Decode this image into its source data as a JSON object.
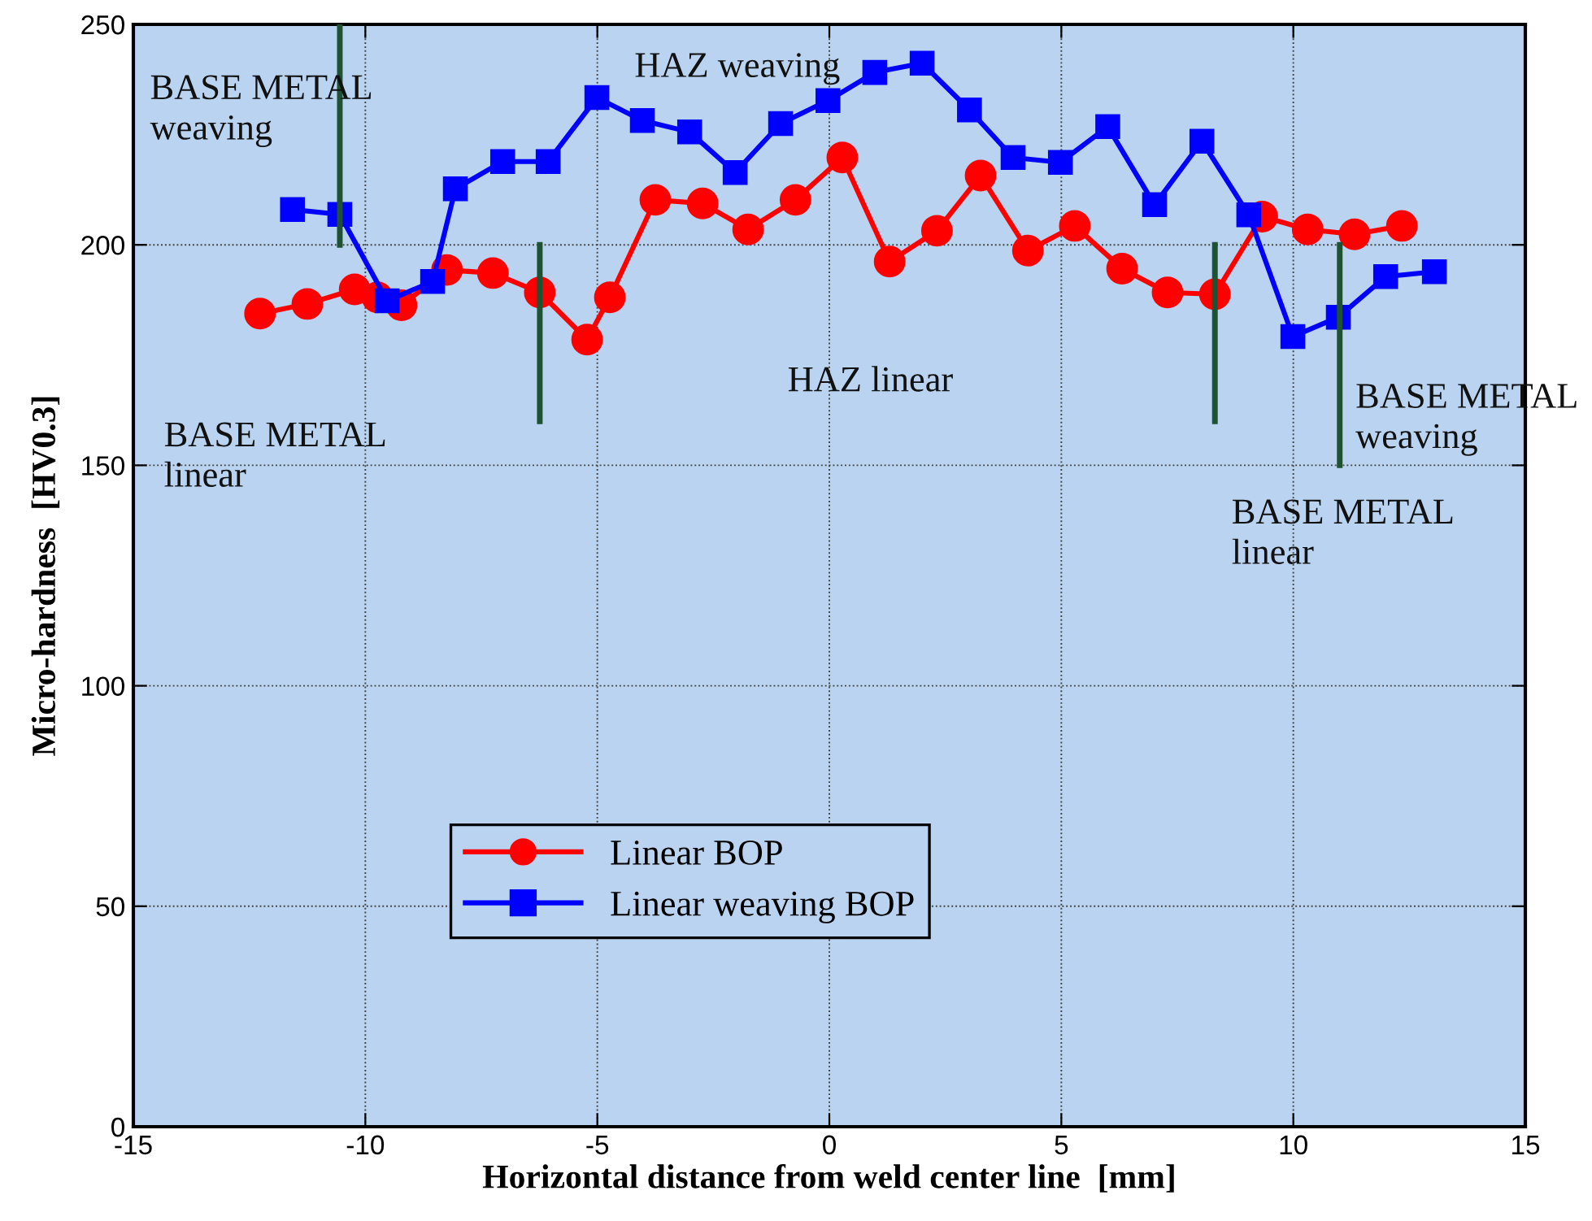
{
  "chart_data": {
    "type": "line",
    "xlabel": "Horizontal distance from weld center line  [mm]",
    "ylabel": "Micro-hardness  [HV0.3]",
    "xlim": [
      -15,
      15
    ],
    "xticks": [
      -15,
      -10,
      -5,
      0,
      5,
      10,
      15
    ],
    "ylim": [
      0,
      250
    ],
    "yticks": [
      0,
      50,
      100,
      150,
      200,
      250
    ],
    "grid": true,
    "legend": "bottom",
    "line_style": "solid",
    "series": [
      {
        "name": "Linear BOP",
        "color": "#ff0000",
        "marker": "circle",
        "x": [
          -12.27,
          -11.25,
          -10.23,
          -9.74,
          -9.22,
          -8.24,
          -7.25,
          -6.24,
          -5.22,
          -4.73,
          -3.75,
          -2.73,
          -1.75,
          -0.73,
          0.28,
          1.3,
          2.32,
          3.26,
          4.28,
          5.29,
          6.31,
          7.29,
          8.31,
          9.33,
          10.31,
          11.32,
          12.34
        ],
        "values": [
          184.4,
          186.6,
          189.9,
          188.1,
          186.3,
          194.3,
          193.6,
          189.2,
          178.5,
          188.1,
          210.2,
          209.4,
          203.5,
          210.2,
          219.8,
          196.2,
          203.2,
          215.7,
          198.7,
          204.3,
          194.6,
          189.2,
          188.8,
          206.4,
          203.5,
          202.4,
          204.3
        ]
      },
      {
        "name": "Linear weaving BOP",
        "color": "#0000ff",
        "marker": "square",
        "x": [
          -11.57,
          -10.55,
          -9.53,
          -8.55,
          -8.06,
          -7.04,
          -6.06,
          -5.01,
          -4.03,
          -3.01,
          -2.03,
          -1.05,
          -0.03,
          0.98,
          2.0,
          3.02,
          3.96,
          4.98,
          6.0,
          7.01,
          8.03,
          9.04,
          9.99,
          10.97,
          11.99,
          13.04
        ],
        "values": [
          208.0,
          206.9,
          187.3,
          191.7,
          212.7,
          218.9,
          218.9,
          233.4,
          228.2,
          225.6,
          216.4,
          227.5,
          232.7,
          239.1,
          241.2,
          230.6,
          219.8,
          218.7,
          226.8,
          209.1,
          223.5,
          206.8,
          179.2,
          183.6,
          192.8,
          193.9
        ]
      },
      {
        "color": "#1e5232",
        "marker": "none",
        "x": [
          -10.55,
          -10.55
        ],
        "values": [
          250,
          200
        ]
      },
      {
        "color": "#1e5232",
        "marker": "none",
        "x": [
          -6.24,
          -6.24
        ],
        "values": [
          200,
          160
        ]
      },
      {
        "color": "#1e5232",
        "marker": "none",
        "x": [
          8.31,
          8.31
        ],
        "values": [
          200,
          160
        ]
      },
      {
        "color": "#1e5232",
        "marker": "none",
        "x": [
          11.0,
          11.0
        ],
        "values": [
          200,
          150
        ]
      }
    ],
    "annotations": [
      "BASE METAL\nweaving",
      "HAZ weaving",
      "HAZ linear",
      "BASE METAL\nlinear",
      "BASE METAL\nweaving",
      "BASE METAL\nlinear"
    ]
  }
}
